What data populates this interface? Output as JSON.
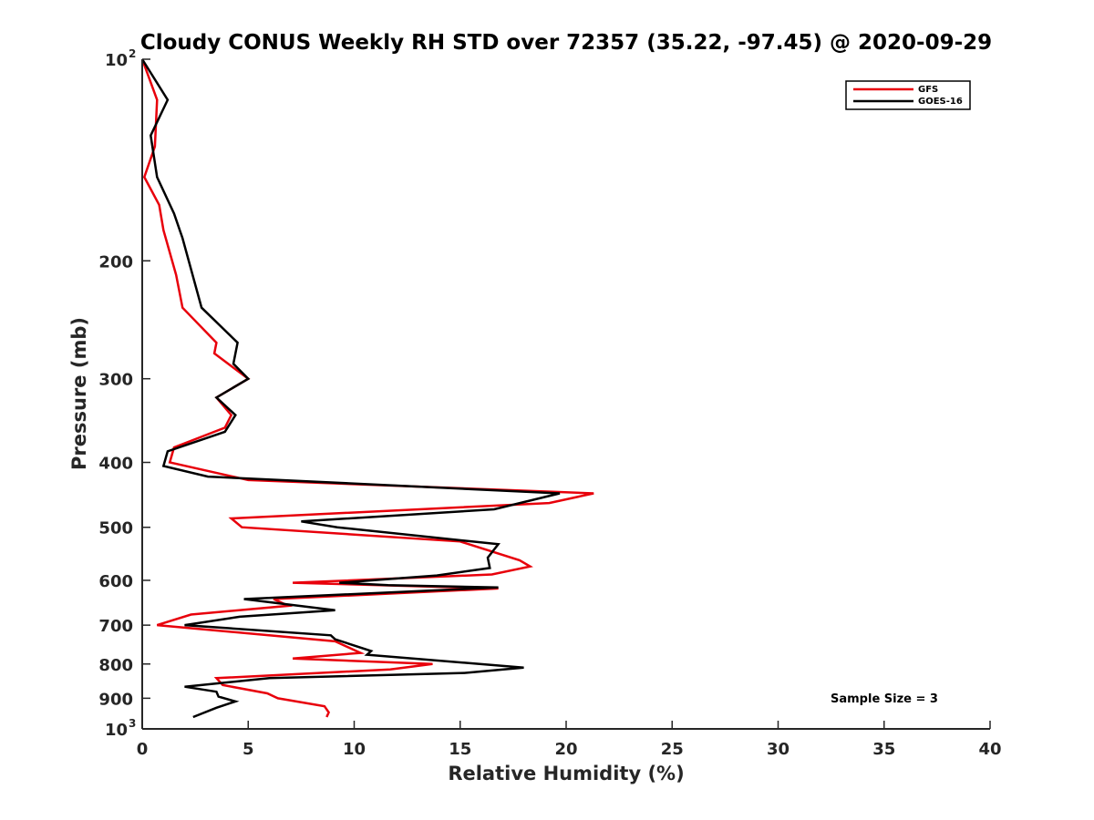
{
  "chart_data": {
    "type": "line",
    "title": "Cloudy CONUS Weekly RH STD over 72357 (35.22, -97.45) @ 2020-09-29",
    "xlabel": "Relative Humidity (%)",
    "ylabel": "Pressure (mb)",
    "xlim": [
      0,
      40
    ],
    "ylim": [
      100,
      1000
    ],
    "y_scale": "log",
    "y_reversed": true,
    "x_ticks": [
      "0",
      "5",
      "10",
      "15",
      "20",
      "25",
      "30",
      "35",
      "40"
    ],
    "y_ticks": [
      {
        "value": 100,
        "label": "10",
        "exp": "2"
      },
      {
        "value": 200,
        "label": "200"
      },
      {
        "value": 300,
        "label": "300"
      },
      {
        "value": 400,
        "label": "400"
      },
      {
        "value": 500,
        "label": "500"
      },
      {
        "value": 600,
        "label": "600"
      },
      {
        "value": 700,
        "label": "700"
      },
      {
        "value": 800,
        "label": "800"
      },
      {
        "value": 900,
        "label": "900"
      },
      {
        "value": 1000,
        "label": "10",
        "exp": "3"
      }
    ],
    "grid": false,
    "legend_position": "top-right",
    "annotation": "Sample Size = 3",
    "series": [
      {
        "name": "GFS",
        "color": "#e8000b",
        "points": [
          [
            0.0,
            100
          ],
          [
            0.7,
            115
          ],
          [
            0.6,
            135
          ],
          [
            0.1,
            150
          ],
          [
            0.8,
            165
          ],
          [
            1.0,
            180
          ],
          [
            1.6,
            210
          ],
          [
            1.9,
            235
          ],
          [
            3.5,
            265
          ],
          [
            3.4,
            275
          ],
          [
            5.0,
            300
          ],
          [
            3.5,
            320
          ],
          [
            4.2,
            340
          ],
          [
            3.9,
            355
          ],
          [
            1.5,
            380
          ],
          [
            1.3,
            400
          ],
          [
            5.0,
            425
          ],
          [
            21.3,
            445
          ],
          [
            19.2,
            460
          ],
          [
            4.2,
            485
          ],
          [
            4.7,
            500
          ],
          [
            15.0,
            525
          ],
          [
            17.8,
            560
          ],
          [
            18.3,
            572
          ],
          [
            16.5,
            588
          ],
          [
            7.1,
            605
          ],
          [
            16.8,
            617
          ],
          [
            6.2,
            640
          ],
          [
            6.9,
            655
          ],
          [
            2.3,
            675
          ],
          [
            0.7,
            700
          ],
          [
            9.1,
            740
          ],
          [
            10.3,
            770
          ],
          [
            7.1,
            785
          ],
          [
            13.7,
            800
          ],
          [
            11.7,
            815
          ],
          [
            3.5,
            840
          ],
          [
            3.8,
            860
          ],
          [
            5.9,
            885
          ],
          [
            6.4,
            900
          ],
          [
            8.6,
            925
          ],
          [
            8.8,
            945
          ],
          [
            8.7,
            960
          ]
        ]
      },
      {
        "name": "GOES-16",
        "color": "#000000",
        "points": [
          [
            0.0,
            100
          ],
          [
            1.2,
            115
          ],
          [
            0.4,
            130
          ],
          [
            0.7,
            150
          ],
          [
            1.5,
            170
          ],
          [
            1.9,
            185
          ],
          [
            2.8,
            235
          ],
          [
            4.5,
            265
          ],
          [
            4.3,
            285
          ],
          [
            5.0,
            300
          ],
          [
            3.5,
            320
          ],
          [
            4.4,
            340
          ],
          [
            3.9,
            360
          ],
          [
            1.2,
            385
          ],
          [
            1.0,
            405
          ],
          [
            3.1,
            420
          ],
          [
            19.7,
            445
          ],
          [
            16.6,
            470
          ],
          [
            7.5,
            490
          ],
          [
            9.2,
            500
          ],
          [
            16.8,
            530
          ],
          [
            16.3,
            555
          ],
          [
            16.4,
            575
          ],
          [
            13.9,
            590
          ],
          [
            9.3,
            605
          ],
          [
            11.6,
            610
          ],
          [
            16.8,
            615
          ],
          [
            4.8,
            640
          ],
          [
            9.1,
            665
          ],
          [
            4.6,
            680
          ],
          [
            2.0,
            700
          ],
          [
            8.9,
            725
          ],
          [
            9.1,
            735
          ],
          [
            10.8,
            765
          ],
          [
            10.6,
            775
          ],
          [
            18.0,
            810
          ],
          [
            15.2,
            825
          ],
          [
            6.0,
            840
          ],
          [
            2.0,
            865
          ],
          [
            3.5,
            880
          ],
          [
            3.6,
            895
          ],
          [
            4.4,
            910
          ],
          [
            3.5,
            930
          ],
          [
            2.4,
            960
          ]
        ]
      }
    ]
  }
}
